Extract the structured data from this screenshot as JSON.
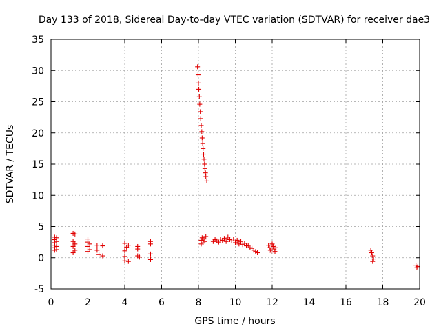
{
  "chart_data": {
    "type": "scatter",
    "title": "Day 133 of 2018, Sidereal Day-to-day VTEC variation (SDTVAR) for receiver dae3",
    "xlabel": "GPS time / hours",
    "ylabel": "SDTVAR / TECUs",
    "xlim": [
      0,
      20
    ],
    "ylim": [
      -5,
      35
    ],
    "xticks": [
      "0",
      "2",
      "4",
      "6",
      "8",
      "10",
      "12",
      "14",
      "16",
      "18",
      "20"
    ],
    "yticks": [
      "-5",
      "0",
      "5",
      "10",
      "15",
      "20",
      "25",
      "30",
      "35"
    ],
    "grid": true,
    "marker": "+",
    "color": "#e00000",
    "series": [
      {
        "name": "dae3",
        "points": [
          [
            0.2,
            3.3
          ],
          [
            0.2,
            2.9
          ],
          [
            0.2,
            2.4
          ],
          [
            0.2,
            2.0
          ],
          [
            0.2,
            1.6
          ],
          [
            0.2,
            1.2
          ],
          [
            0.3,
            3.2
          ],
          [
            0.3,
            2.6
          ],
          [
            0.3,
            1.8
          ],
          [
            0.3,
            1.3
          ],
          [
            1.2,
            3.9
          ],
          [
            1.3,
            3.8
          ],
          [
            1.2,
            2.6
          ],
          [
            1.3,
            2.2
          ],
          [
            1.2,
            1.8
          ],
          [
            1.3,
            1.2
          ],
          [
            1.2,
            0.8
          ],
          [
            2.0,
            3.0
          ],
          [
            2.0,
            2.5
          ],
          [
            2.1,
            2.2
          ],
          [
            2.0,
            1.8
          ],
          [
            2.1,
            1.3
          ],
          [
            2.0,
            1.0
          ],
          [
            2.5,
            2.0
          ],
          [
            2.5,
            1.2
          ],
          [
            2.6,
            0.5
          ],
          [
            2.8,
            1.9
          ],
          [
            2.8,
            0.3
          ],
          [
            4.0,
            2.3
          ],
          [
            4.1,
            1.7
          ],
          [
            4.0,
            1.1
          ],
          [
            4.0,
            0.2
          ],
          [
            4.0,
            -0.5
          ],
          [
            4.2,
            -0.6
          ],
          [
            4.2,
            2.0
          ],
          [
            4.7,
            1.8
          ],
          [
            4.7,
            1.4
          ],
          [
            4.7,
            0.3
          ],
          [
            4.8,
            0.1
          ],
          [
            5.4,
            2.6
          ],
          [
            5.4,
            2.2
          ],
          [
            5.4,
            0.6
          ],
          [
            5.4,
            -0.3
          ],
          [
            7.95,
            30.6
          ],
          [
            7.98,
            29.3
          ],
          [
            8.0,
            28.0
          ],
          [
            8.02,
            27.0
          ],
          [
            8.05,
            25.8
          ],
          [
            8.07,
            24.6
          ],
          [
            8.1,
            23.4
          ],
          [
            8.12,
            22.3
          ],
          [
            8.15,
            21.2
          ],
          [
            8.18,
            20.2
          ],
          [
            8.2,
            19.2
          ],
          [
            8.23,
            18.3
          ],
          [
            8.25,
            17.5
          ],
          [
            8.28,
            16.6
          ],
          [
            8.3,
            15.8
          ],
          [
            8.33,
            15.0
          ],
          [
            8.35,
            14.3
          ],
          [
            8.38,
            13.6
          ],
          [
            8.4,
            13.0
          ],
          [
            8.45,
            12.3
          ],
          [
            8.15,
            2.2
          ],
          [
            8.15,
            2.8
          ],
          [
            8.2,
            3.2
          ],
          [
            8.25,
            2.4
          ],
          [
            8.3,
            3.0
          ],
          [
            8.35,
            2.6
          ],
          [
            8.4,
            3.4
          ],
          [
            8.8,
            2.6
          ],
          [
            8.9,
            2.9
          ],
          [
            9.0,
            2.7
          ],
          [
            9.1,
            2.5
          ],
          [
            9.2,
            3.0
          ],
          [
            9.3,
            2.8
          ],
          [
            9.4,
            3.1
          ],
          [
            9.5,
            2.6
          ],
          [
            9.6,
            3.3
          ],
          [
            9.7,
            2.9
          ],
          [
            9.8,
            2.7
          ],
          [
            9.9,
            3.0
          ],
          [
            10.0,
            2.4
          ],
          [
            10.1,
            2.8
          ],
          [
            10.2,
            2.2
          ],
          [
            10.3,
            2.6
          ],
          [
            10.4,
            2.1
          ],
          [
            10.5,
            2.3
          ],
          [
            10.6,
            1.9
          ],
          [
            10.7,
            2.0
          ],
          [
            10.8,
            1.6
          ],
          [
            10.9,
            1.5
          ],
          [
            11.0,
            1.2
          ],
          [
            11.1,
            1.0
          ],
          [
            11.2,
            0.8
          ],
          [
            11.8,
            2.0
          ],
          [
            11.85,
            1.6
          ],
          [
            11.9,
            1.2
          ],
          [
            11.95,
            0.9
          ],
          [
            12.0,
            2.2
          ],
          [
            12.05,
            1.8
          ],
          [
            12.1,
            1.4
          ],
          [
            12.15,
            1.0
          ],
          [
            12.2,
            1.6
          ],
          [
            17.35,
            1.2
          ],
          [
            17.4,
            0.8
          ],
          [
            17.45,
            0.3
          ],
          [
            17.5,
            -0.2
          ],
          [
            17.45,
            -0.6
          ],
          [
            19.8,
            -1.2
          ],
          [
            19.85,
            -1.6
          ],
          [
            19.9,
            -1.4
          ]
        ]
      }
    ]
  }
}
